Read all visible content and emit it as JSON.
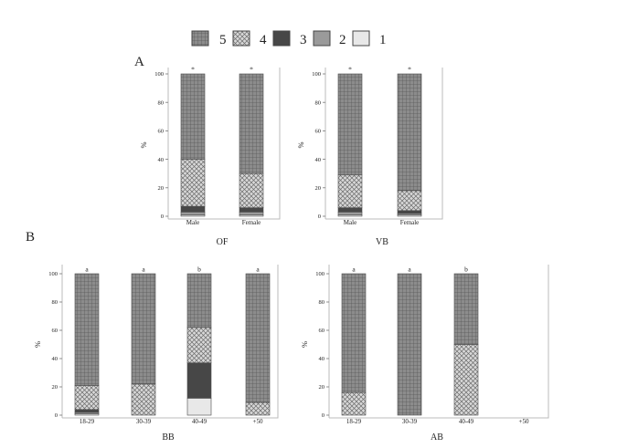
{
  "legend": {
    "placement": "top-center",
    "items": [
      {
        "label": "5",
        "pattern": "grid"
      },
      {
        "label": "4",
        "pattern": "cross"
      },
      {
        "label": "3",
        "pattern": "solid-dark"
      },
      {
        "label": "2",
        "pattern": "solid-mid"
      },
      {
        "label": "1",
        "pattern": "solid-light"
      }
    ]
  },
  "section_labels": {
    "a": "A",
    "b": "B"
  },
  "colors": {
    "level_1": "#e8e8e8",
    "level_2": "#9a9a9a",
    "level_3": "#474747",
    "level_4": "#d4d4d4",
    "level_5": "#8c8c8c",
    "panel_border": "#bbbbbb",
    "bar_edge": "#4a4a4a"
  },
  "chart_data": [
    {
      "type": "bar",
      "stacked": true,
      "xlabel": "OF",
      "ylabel": "%",
      "ylim": [
        0,
        100
      ],
      "yticks": [
        0,
        20,
        40,
        60,
        80,
        100
      ],
      "grid": false,
      "categories": [
        "Male",
        "Female"
      ],
      "top_labels": [
        "*",
        "*"
      ],
      "series": [
        {
          "name": "1",
          "values": [
            1,
            1
          ]
        },
        {
          "name": "2",
          "values": [
            2,
            2
          ]
        },
        {
          "name": "3",
          "values": [
            4,
            3
          ]
        },
        {
          "name": "4",
          "values": [
            33,
            24
          ]
        },
        {
          "name": "5",
          "values": [
            60,
            70
          ]
        }
      ]
    },
    {
      "type": "bar",
      "stacked": true,
      "xlabel": "VB",
      "ylabel": "%",
      "ylim": [
        0,
        100
      ],
      "yticks": [
        0,
        20,
        40,
        60,
        80,
        100
      ],
      "grid": false,
      "categories": [
        "Male",
        "Female"
      ],
      "top_labels": [
        "*",
        "*"
      ],
      "series": [
        {
          "name": "1",
          "values": [
            1,
            1
          ]
        },
        {
          "name": "2",
          "values": [
            2,
            1
          ]
        },
        {
          "name": "3",
          "values": [
            3,
            2
          ]
        },
        {
          "name": "4",
          "values": [
            23,
            14
          ]
        },
        {
          "name": "5",
          "values": [
            71,
            82
          ]
        }
      ]
    },
    {
      "type": "bar",
      "stacked": true,
      "xlabel": "BB",
      "ylabel": "%",
      "ylim": [
        0,
        100
      ],
      "yticks": [
        0,
        20,
        40,
        60,
        80,
        100
      ],
      "grid": false,
      "categories": [
        "18-29",
        "30-39",
        "40-49",
        "+50"
      ],
      "top_labels": [
        "a",
        "a",
        "b",
        "a"
      ],
      "series": [
        {
          "name": "1",
          "values": [
            1,
            0,
            12,
            0
          ]
        },
        {
          "name": "2",
          "values": [
            1,
            0,
            0,
            0
          ]
        },
        {
          "name": "3",
          "values": [
            2,
            0,
            25,
            0
          ]
        },
        {
          "name": "4",
          "values": [
            17,
            22,
            25,
            9
          ]
        },
        {
          "name": "5",
          "values": [
            79,
            78,
            38,
            91
          ]
        }
      ]
    },
    {
      "type": "bar",
      "stacked": true,
      "xlabel": "AB",
      "ylabel": "%",
      "ylim": [
        0,
        100
      ],
      "yticks": [
        0,
        20,
        40,
        60,
        80,
        100
      ],
      "grid": false,
      "categories": [
        "18-29",
        "30-39",
        "40-49",
        "+50"
      ],
      "top_labels": [
        "a",
        "a",
        "b",
        ""
      ],
      "series": [
        {
          "name": "1",
          "values": [
            0,
            0,
            0,
            0
          ]
        },
        {
          "name": "2",
          "values": [
            0,
            0,
            0,
            0
          ]
        },
        {
          "name": "3",
          "values": [
            0,
            0,
            0,
            0
          ]
        },
        {
          "name": "4",
          "values": [
            16,
            0,
            50,
            0
          ]
        },
        {
          "name": "5",
          "values": [
            84,
            100,
            50,
            0
          ]
        }
      ]
    }
  ]
}
